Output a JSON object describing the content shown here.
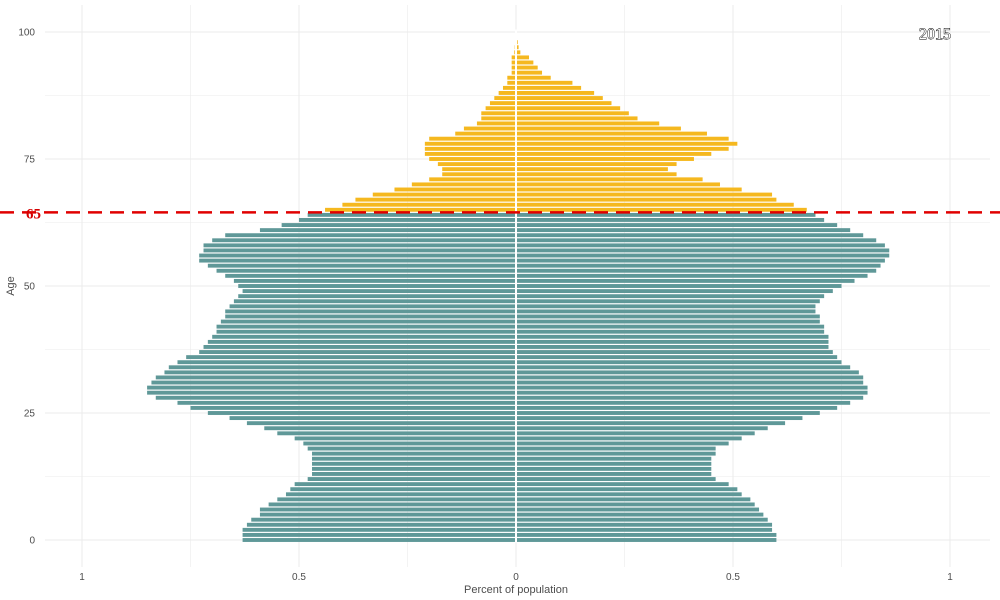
{
  "chart_data": {
    "type": "bar",
    "orientation": "horizontal",
    "subtype": "population-pyramid",
    "year_label": "2015",
    "xlabel": "Percent of population",
    "ylabel": "Age",
    "xlim": [
      -1,
      1
    ],
    "ylim": [
      0,
      100
    ],
    "x_ticks": [
      -1,
      -0.5,
      0,
      0.5,
      1
    ],
    "x_tick_labels": [
      "1",
      "0.5",
      "0",
      "0.5",
      "1"
    ],
    "y_ticks": [
      0,
      25,
      50,
      75,
      100
    ],
    "y_tick_labels": [
      "0",
      "25",
      "50",
      "75",
      "100"
    ],
    "reference_line": {
      "age": 65,
      "label": "65",
      "color": "#e00000"
    },
    "grid": true,
    "colors": {
      "under_65": "#5f9898",
      "over_65": "#f5b81f",
      "center_line": "#ffffff",
      "grid": "#ebebeb"
    },
    "ages": [
      0,
      1,
      2,
      3,
      4,
      5,
      6,
      7,
      8,
      9,
      10,
      11,
      12,
      13,
      14,
      15,
      16,
      17,
      18,
      19,
      20,
      21,
      22,
      23,
      24,
      25,
      26,
      27,
      28,
      29,
      30,
      31,
      32,
      33,
      34,
      35,
      36,
      37,
      38,
      39,
      40,
      41,
      42,
      43,
      44,
      45,
      46,
      47,
      48,
      49,
      50,
      51,
      52,
      53,
      54,
      55,
      56,
      57,
      58,
      59,
      60,
      61,
      62,
      63,
      64,
      65,
      66,
      67,
      68,
      69,
      70,
      71,
      72,
      73,
      74,
      75,
      76,
      77,
      78,
      79,
      80,
      81,
      82,
      83,
      84,
      85,
      86,
      87,
      88,
      89,
      90,
      91,
      92,
      93,
      94,
      95,
      96,
      97,
      98,
      99,
      100
    ],
    "left_values": [
      0.63,
      0.63,
      0.63,
      0.62,
      0.61,
      0.59,
      0.59,
      0.57,
      0.55,
      0.53,
      0.52,
      0.51,
      0.48,
      0.47,
      0.47,
      0.47,
      0.47,
      0.47,
      0.48,
      0.49,
      0.51,
      0.55,
      0.58,
      0.62,
      0.66,
      0.71,
      0.75,
      0.78,
      0.83,
      0.85,
      0.85,
      0.84,
      0.83,
      0.81,
      0.8,
      0.78,
      0.76,
      0.73,
      0.72,
      0.71,
      0.7,
      0.69,
      0.69,
      0.68,
      0.67,
      0.67,
      0.66,
      0.65,
      0.64,
      0.63,
      0.64,
      0.65,
      0.67,
      0.69,
      0.71,
      0.73,
      0.73,
      0.72,
      0.72,
      0.7,
      0.67,
      0.59,
      0.54,
      0.5,
      0.48,
      0.44,
      0.4,
      0.37,
      0.33,
      0.28,
      0.24,
      0.2,
      0.17,
      0.17,
      0.18,
      0.2,
      0.21,
      0.21,
      0.21,
      0.2,
      0.14,
      0.12,
      0.09,
      0.08,
      0.08,
      0.07,
      0.06,
      0.05,
      0.04,
      0.03,
      0.02,
      0.02,
      0.01,
      0.01,
      0.01,
      0.01,
      0.004,
      0.003,
      0.002,
      0.001,
      0.001
    ],
    "right_values": [
      0.6,
      0.6,
      0.59,
      0.59,
      0.58,
      0.57,
      0.56,
      0.55,
      0.54,
      0.52,
      0.51,
      0.49,
      0.46,
      0.45,
      0.45,
      0.45,
      0.45,
      0.46,
      0.46,
      0.49,
      0.52,
      0.55,
      0.58,
      0.62,
      0.66,
      0.7,
      0.74,
      0.77,
      0.8,
      0.81,
      0.81,
      0.8,
      0.8,
      0.79,
      0.77,
      0.75,
      0.74,
      0.73,
      0.72,
      0.72,
      0.72,
      0.71,
      0.71,
      0.7,
      0.7,
      0.69,
      0.69,
      0.7,
      0.71,
      0.73,
      0.75,
      0.78,
      0.81,
      0.83,
      0.84,
      0.85,
      0.86,
      0.86,
      0.85,
      0.83,
      0.8,
      0.77,
      0.74,
      0.71,
      0.69,
      0.67,
      0.64,
      0.6,
      0.59,
      0.52,
      0.47,
      0.43,
      0.37,
      0.35,
      0.37,
      0.41,
      0.45,
      0.49,
      0.51,
      0.49,
      0.44,
      0.38,
      0.33,
      0.28,
      0.26,
      0.24,
      0.22,
      0.2,
      0.18,
      0.15,
      0.13,
      0.08,
      0.06,
      0.05,
      0.04,
      0.03,
      0.01,
      0.006,
      0.004,
      0.002,
      0.002
    ]
  }
}
